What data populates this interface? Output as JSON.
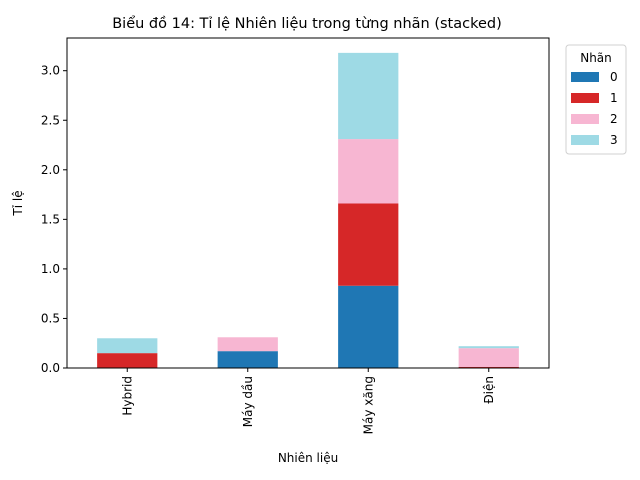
{
  "chart_data": {
    "type": "bar",
    "stacked": true,
    "title": "Biểu đồ 14: Tỉ lệ Nhiên liệu trong từng nhãn (stacked)",
    "xlabel": "Nhiên liệu",
    "ylabel": "Tỉ lệ",
    "categories": [
      "Hybrid",
      "Máy dầu",
      "Máy xăng",
      "Điện"
    ],
    "ylim": [
      0,
      3.33
    ],
    "yticks": [
      0.0,
      0.5,
      1.0,
      1.5,
      2.0,
      2.5,
      3.0
    ],
    "ytick_labels": [
      "0.0",
      "0.5",
      "1.0",
      "1.5",
      "2.0",
      "2.5",
      "3.0"
    ],
    "grid": false,
    "legend": {
      "title": "Nhãn",
      "position": "outside-right-top"
    },
    "series": [
      {
        "name": "0",
        "color": "#1f77b4",
        "values": [
          0.0,
          0.17,
          0.83,
          0.0
        ]
      },
      {
        "name": "1",
        "color": "#d62728",
        "values": [
          0.15,
          0.0,
          0.83,
          0.01
        ]
      },
      {
        "name": "2",
        "color": "#f7b6d2",
        "values": [
          0.0,
          0.14,
          0.65,
          0.19
        ]
      },
      {
        "name": "3",
        "color": "#9edae5",
        "values": [
          0.15,
          0.0,
          0.87,
          0.02
        ]
      }
    ]
  }
}
